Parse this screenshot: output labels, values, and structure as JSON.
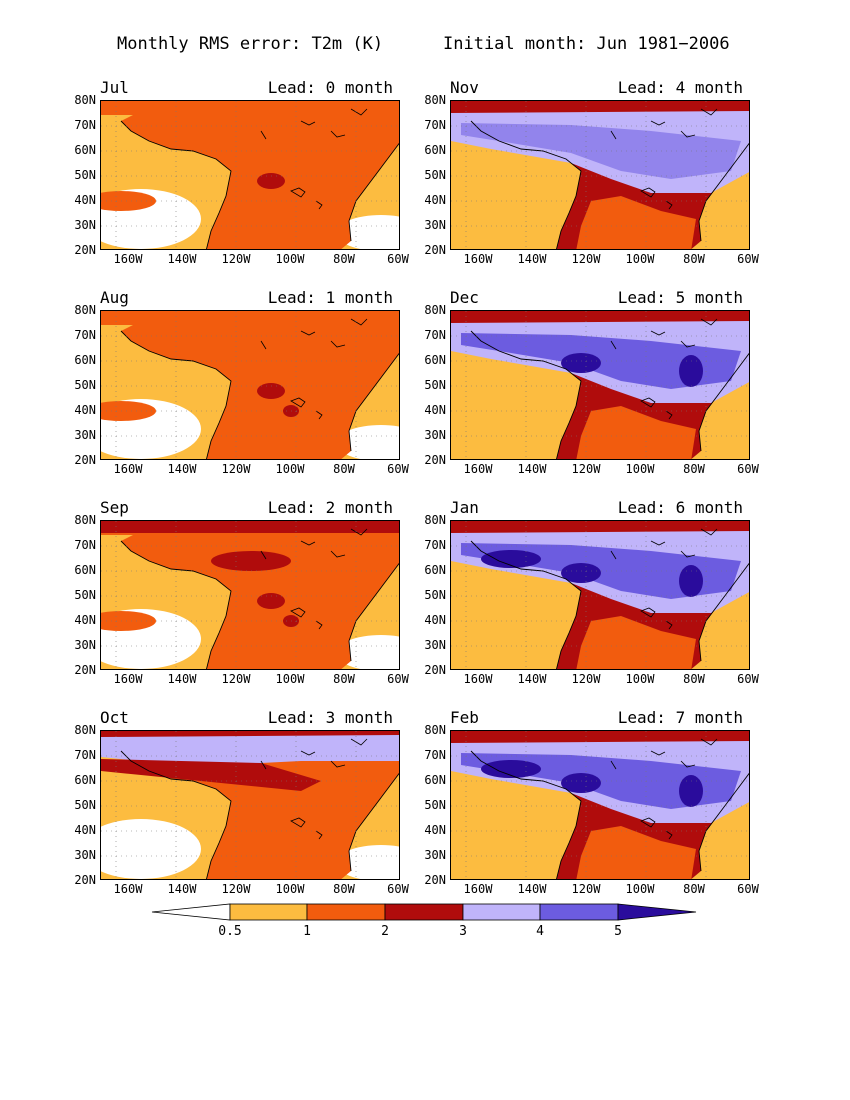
{
  "title": {
    "left": "Monthly RMS error: T2m (K)",
    "right": "Initial month: Jun 1981−2006"
  },
  "colors": {
    "lt0.5": "#ffffff",
    "0.5-1": "#fcbc40",
    "1-2": "#f25c0e",
    "2-3": "#b00c0c",
    "3-4": "#c0b4fa",
    "4-5": "#6c5ce0",
    "gt5": "#2a0c9c"
  },
  "colorbar": {
    "levels": [
      "0.5",
      "1",
      "2",
      "3",
      "4",
      "5"
    ]
  },
  "axes": {
    "lat_labels": [
      "80N",
      "70N",
      "60N",
      "50N",
      "40N",
      "30N",
      "20N"
    ],
    "lon_labels": [
      "160W",
      "140W",
      "120W",
      "100W",
      "80W",
      "60W"
    ]
  },
  "panels": [
    {
      "month": "Jul",
      "lead": "Lead: 0 month",
      "regime": "warm0"
    },
    {
      "month": "Nov",
      "lead": "Lead: 4 month",
      "regime": "cold1"
    },
    {
      "month": "Aug",
      "lead": "Lead: 1 month",
      "regime": "warm1"
    },
    {
      "month": "Dec",
      "lead": "Lead: 5 month",
      "regime": "cold2"
    },
    {
      "month": "Sep",
      "lead": "Lead: 2 month",
      "regime": "warm2"
    },
    {
      "month": "Jan",
      "lead": "Lead: 6 month",
      "regime": "cold3"
    },
    {
      "month": "Oct",
      "lead": "Lead: 3 month",
      "regime": "mixed"
    },
    {
      "month": "Feb",
      "lead": "Lead: 7 month",
      "regime": "cold4"
    }
  ]
}
